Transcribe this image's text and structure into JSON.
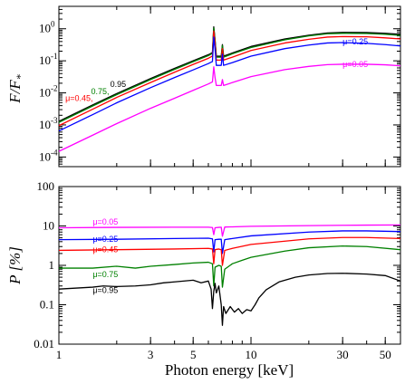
{
  "chart_data": [
    {
      "type": "line",
      "panel": "top",
      "ylabel": "F/F",
      "ylabel_sub": "*",
      "xscale": "log",
      "yscale": "log",
      "xlim": [
        1,
        60
      ],
      "ylim": [
        5e-05,
        5
      ],
      "x_ticks": [
        1,
        3,
        5,
        10,
        30,
        50
      ],
      "x_tick_labels": [
        "",
        "",
        "",
        "",
        "",
        ""
      ],
      "y_ticks": [
        0.0001,
        0.001,
        0.01,
        0.1,
        1
      ],
      "y_tick_labels": [
        "10",
        "10",
        "10",
        "10",
        "10"
      ],
      "y_tick_exps": [
        "-4",
        "-3",
        "-2",
        "-1",
        "0"
      ],
      "series": [
        {
          "name": "0.95",
          "color": "#000000",
          "x": [
            1,
            1.5,
            2,
            3,
            4,
            5,
            6,
            6.3,
            6.4,
            6.5,
            6.6,
            7.0,
            7.1,
            7.2,
            8,
            10,
            15,
            20,
            25,
            30,
            40,
            50,
            60
          ],
          "y": [
            0.0013,
            0.0042,
            0.0095,
            0.028,
            0.058,
            0.1,
            0.155,
            0.18,
            1.15,
            0.45,
            0.14,
            0.14,
            0.32,
            0.14,
            0.175,
            0.28,
            0.48,
            0.63,
            0.74,
            0.77,
            0.76,
            0.72,
            0.67
          ]
        },
        {
          "name": "0.75",
          "color": "#008000",
          "x": [
            1,
            1.5,
            2,
            3,
            4,
            5,
            6,
            6.3,
            6.4,
            6.5,
            6.6,
            7.0,
            7.1,
            7.2,
            8,
            10,
            15,
            20,
            25,
            30,
            40,
            50,
            60
          ],
          "y": [
            0.0012,
            0.0039,
            0.0088,
            0.026,
            0.054,
            0.094,
            0.145,
            0.17,
            1.05,
            0.42,
            0.13,
            0.13,
            0.3,
            0.13,
            0.165,
            0.26,
            0.45,
            0.6,
            0.7,
            0.72,
            0.71,
            0.67,
            0.62
          ]
        },
        {
          "name": "0.45",
          "color": "#ff0000",
          "x": [
            1,
            1.5,
            2,
            3,
            4,
            5,
            6,
            6.3,
            6.4,
            6.5,
            6.6,
            7.0,
            7.1,
            7.2,
            8,
            10,
            15,
            20,
            25,
            30,
            40,
            50,
            60
          ],
          "y": [
            0.00095,
            0.0031,
            0.0072,
            0.021,
            0.044,
            0.077,
            0.12,
            0.14,
            0.85,
            0.35,
            0.105,
            0.105,
            0.24,
            0.105,
            0.13,
            0.21,
            0.36,
            0.47,
            0.55,
            0.57,
            0.56,
            0.52,
            0.48
          ]
        },
        {
          "name": "μ=0.25",
          "color": "#0000ff",
          "x": [
            1,
            1.5,
            2,
            3,
            4,
            5,
            6,
            6.3,
            6.4,
            6.5,
            6.6,
            7.0,
            7.1,
            7.2,
            8,
            10,
            15,
            20,
            25,
            30,
            40,
            50,
            60
          ],
          "y": [
            0.00065,
            0.0021,
            0.0049,
            0.0145,
            0.03,
            0.052,
            0.082,
            0.095,
            0.55,
            0.23,
            0.072,
            0.072,
            0.16,
            0.072,
            0.088,
            0.14,
            0.24,
            0.31,
            0.36,
            0.37,
            0.35,
            0.32,
            0.29
          ]
        },
        {
          "name": "μ=0.05",
          "color": "#ff00ff",
          "x": [
            1,
            1.5,
            2,
            3,
            4,
            5,
            6,
            6.3,
            6.4,
            6.5,
            6.6,
            7.0,
            7.1,
            7.2,
            8,
            10,
            15,
            20,
            25,
            30,
            40,
            50,
            60
          ],
          "y": [
            0.00015,
            0.00048,
            0.0011,
            0.0033,
            0.0068,
            0.012,
            0.019,
            0.022,
            0.065,
            0.03,
            0.017,
            0.017,
            0.026,
            0.017,
            0.021,
            0.032,
            0.053,
            0.067,
            0.076,
            0.078,
            0.078,
            0.075,
            0.07
          ]
        }
      ]
    },
    {
      "type": "line",
      "panel": "bottom",
      "xlabel": "Photon energy [keV]",
      "ylabel": "P [%]",
      "xscale": "log",
      "yscale": "log",
      "xlim": [
        1,
        60
      ],
      "ylim": [
        0.01,
        100
      ],
      "x_ticks": [
        1,
        3,
        5,
        10,
        30,
        50
      ],
      "x_tick_labels": [
        "1",
        "3",
        "5",
        "10",
        "30",
        "50"
      ],
      "y_ticks": [
        0.01,
        0.1,
        1,
        10,
        100
      ],
      "y_tick_labels": [
        "0.01",
        "0.1",
        "1",
        "10",
        "100"
      ],
      "series": [
        {
          "name": "μ=0.05",
          "color": "#ff00ff",
          "x": [
            1,
            2,
            4,
            6,
            6.3,
            6.4,
            6.5,
            6.8,
            7.0,
            7.1,
            7.3,
            8,
            10,
            20,
            30,
            40,
            60
          ],
          "y": [
            9.0,
            9.2,
            9.3,
            9.3,
            9.1,
            6.0,
            9.0,
            9.2,
            9.3,
            5.5,
            9.4,
            9.5,
            9.8,
            10.2,
            10.4,
            10.5,
            10.6
          ]
        },
        {
          "name": "μ=0.25",
          "color": "#0000ff",
          "x": [
            1,
            2,
            4,
            6,
            6.3,
            6.4,
            6.5,
            6.8,
            7.0,
            7.1,
            7.3,
            8,
            10,
            20,
            30,
            40,
            60
          ],
          "y": [
            4.5,
            4.6,
            4.8,
            4.9,
            4.7,
            2.2,
            4.5,
            4.6,
            4.6,
            2.0,
            4.5,
            4.8,
            5.6,
            7.0,
            7.5,
            7.5,
            7.2
          ]
        },
        {
          "name": "μ=0.45",
          "color": "#ff0000",
          "x": [
            1,
            2,
            4,
            6,
            6.3,
            6.4,
            6.5,
            6.8,
            7.0,
            7.1,
            7.3,
            8,
            10,
            20,
            30,
            40,
            60
          ],
          "y": [
            2.4,
            2.5,
            2.6,
            2.7,
            2.6,
            1.1,
            2.5,
            2.6,
            2.5,
            1.0,
            2.4,
            2.7,
            3.4,
            4.7,
            5.1,
            5.1,
            4.8
          ]
        },
        {
          "name": "μ=0.75",
          "color": "#008000",
          "x": [
            1,
            1.5,
            2,
            2.5,
            3,
            4,
            5,
            6,
            6.3,
            6.4,
            6.5,
            6.8,
            7.0,
            7.1,
            7.3,
            8,
            9,
            10,
            15,
            20,
            30,
            40,
            60
          ],
          "y": [
            0.85,
            0.85,
            0.95,
            0.85,
            0.95,
            1.05,
            1.15,
            1.2,
            1.1,
            0.3,
            0.9,
            1.0,
            0.95,
            0.28,
            0.8,
            1.1,
            1.35,
            1.6,
            2.3,
            2.8,
            3.1,
            3.0,
            2.5
          ]
        },
        {
          "name": "μ=0.95",
          "color": "#000000",
          "x": [
            1,
            1.5,
            1.7,
            2,
            2.5,
            3,
            3.5,
            4,
            5,
            5.5,
            6,
            6.2,
            6.3,
            6.4,
            6.5,
            6.6,
            6.8,
            7.0,
            7.1,
            7.2,
            7.4,
            7.8,
            8.2,
            8.6,
            9,
            9.5,
            10,
            10.5,
            11,
            12,
            14,
            17,
            20,
            25,
            30,
            40,
            50,
            60
          ],
          "y": [
            0.25,
            0.28,
            0.3,
            0.29,
            0.3,
            0.32,
            0.36,
            0.38,
            0.42,
            0.36,
            0.4,
            0.25,
            0.08,
            0.22,
            0.35,
            0.2,
            0.3,
            0.1,
            0.03,
            0.09,
            0.06,
            0.09,
            0.065,
            0.08,
            0.06,
            0.075,
            0.07,
            0.1,
            0.15,
            0.24,
            0.38,
            0.5,
            0.57,
            0.62,
            0.63,
            0.6,
            0.55,
            0.4
          ]
        }
      ]
    }
  ],
  "annotations": {
    "top": [
      {
        "text": "μ=0.45,",
        "color": "#ff0000",
        "x": 1.08,
        "y": 0.0055
      },
      {
        "text": "0.75,",
        "color": "#008000",
        "x": 1.47,
        "y": 0.009
      },
      {
        "text": "0.95",
        "color": "#000000",
        "x": 1.85,
        "y": 0.0155
      },
      {
        "text": "μ=0.25",
        "color": "#0000ff",
        "x": 30,
        "y": 0.33
      },
      {
        "text": "μ=0.05",
        "color": "#ff00ff",
        "x": 30,
        "y": 0.065
      }
    ],
    "bottom": [
      {
        "text": "μ=0.05",
        "color": "#ff00ff",
        "x": 1.5,
        "y": 10.8
      },
      {
        "text": "μ=0.25",
        "color": "#0000ff",
        "x": 1.5,
        "y": 4.0
      },
      {
        "text": "μ=0.45",
        "color": "#ff0000",
        "x": 1.5,
        "y": 2.15
      },
      {
        "text": "μ=0.75",
        "color": "#008000",
        "x": 1.5,
        "y": 0.5
      },
      {
        "text": "μ=0.95",
        "color": "#000000",
        "x": 1.5,
        "y": 0.2
      }
    ]
  }
}
